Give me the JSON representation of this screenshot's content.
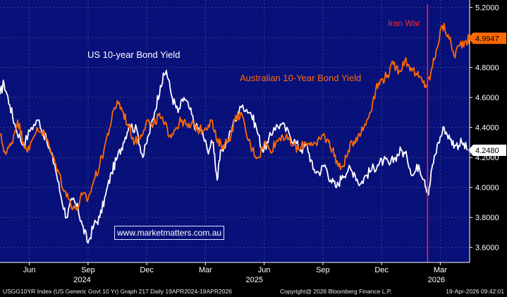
{
  "chart_data": {
    "type": "line",
    "title": "",
    "xlabel": "",
    "ylabel": "",
    "ylim": [
      3.5,
      5.25
    ],
    "x_unit": "months since 19-Apr-2024",
    "xlim": [
      0,
      24
    ],
    "y_ticks": [
      "5.2000",
      "5.0000",
      "4.8000",
      "4.6000",
      "4.4000",
      "4.2000",
      "4.0000",
      "3.8000",
      "3.6000"
    ],
    "x_month_labels": [
      {
        "label": "Jun",
        "x": 1.5
      },
      {
        "label": "Sep",
        "x": 4.5
      },
      {
        "label": "Dec",
        "x": 7.5
      },
      {
        "label": "Mar",
        "x": 10.5
      },
      {
        "label": "Jun",
        "x": 13.5
      },
      {
        "label": "Sep",
        "x": 16.5
      },
      {
        "label": "Dec",
        "x": 19.5
      },
      {
        "label": "Mar",
        "x": 22.5
      }
    ],
    "x_year_labels": [
      {
        "label": "2024",
        "x": 4.2
      },
      {
        "label": "2025",
        "x": 13.0
      },
      {
        "label": "2026",
        "x": 22.3
      }
    ],
    "series": [
      {
        "name": "US 10-year Bond Yield",
        "color": "#ffffff",
        "last_value": "4.2480",
        "points": [
          [
            0.0,
            4.62
          ],
          [
            0.2,
            4.7
          ],
          [
            0.5,
            4.55
          ],
          [
            0.8,
            4.4
          ],
          [
            1.2,
            4.28
          ],
          [
            1.6,
            4.4
          ],
          [
            2.0,
            4.45
          ],
          [
            2.4,
            4.3
          ],
          [
            2.8,
            4.15
          ],
          [
            3.1,
            3.95
          ],
          [
            3.4,
            3.8
          ],
          [
            3.7,
            3.92
          ],
          [
            4.0,
            3.85
          ],
          [
            4.2,
            3.75
          ],
          [
            4.5,
            3.63
          ],
          [
            4.8,
            3.75
          ],
          [
            5.1,
            3.8
          ],
          [
            5.4,
            3.95
          ],
          [
            5.7,
            4.1
          ],
          [
            6.0,
            4.2
          ],
          [
            6.3,
            4.3
          ],
          [
            6.6,
            4.42
          ],
          [
            7.0,
            4.38
          ],
          [
            7.3,
            4.2
          ],
          [
            7.6,
            4.35
          ],
          [
            7.9,
            4.5
          ],
          [
            8.2,
            4.68
          ],
          [
            8.5,
            4.78
          ],
          [
            8.8,
            4.6
          ],
          [
            9.1,
            4.5
          ],
          [
            9.4,
            4.6
          ],
          [
            9.7,
            4.52
          ],
          [
            10.0,
            4.4
          ],
          [
            10.3,
            4.38
          ],
          [
            10.6,
            4.25
          ],
          [
            10.9,
            4.3
          ],
          [
            11.1,
            4.05
          ],
          [
            11.3,
            4.25
          ],
          [
            11.6,
            4.3
          ],
          [
            12.0,
            4.45
          ],
          [
            12.4,
            4.55
          ],
          [
            12.8,
            4.5
          ],
          [
            13.1,
            4.4
          ],
          [
            13.4,
            4.25
          ],
          [
            13.7,
            4.3
          ],
          [
            14.0,
            4.4
          ],
          [
            14.4,
            4.42
          ],
          [
            14.8,
            4.35
          ],
          [
            15.1,
            4.3
          ],
          [
            15.4,
            4.25
          ],
          [
            15.7,
            4.28
          ],
          [
            16.0,
            4.12
          ],
          [
            16.3,
            4.1
          ],
          [
            16.6,
            4.15
          ],
          [
            16.9,
            4.05
          ],
          [
            17.2,
            4.0
          ],
          [
            17.5,
            4.08
          ],
          [
            17.8,
            4.12
          ],
          [
            18.1,
            4.1
          ],
          [
            18.4,
            4.02
          ],
          [
            18.7,
            4.08
          ],
          [
            19.0,
            4.12
          ],
          [
            19.3,
            4.15
          ],
          [
            19.6,
            4.18
          ],
          [
            19.9,
            4.15
          ],
          [
            20.2,
            4.2
          ],
          [
            20.5,
            4.25
          ],
          [
            20.8,
            4.2
          ],
          [
            21.1,
            4.08
          ],
          [
            21.4,
            4.15
          ],
          [
            21.7,
            4.05
          ],
          [
            21.9,
            3.95
          ],
          [
            22.1,
            4.15
          ],
          [
            22.4,
            4.3
          ],
          [
            22.7,
            4.4
          ],
          [
            23.0,
            4.32
          ],
          [
            23.3,
            4.28
          ],
          [
            23.6,
            4.3
          ],
          [
            23.9,
            4.25
          ]
        ]
      },
      {
        "name": "Australian 10-Year Bond Yield",
        "color": "#ff6a00",
        "last_value": "4.9947",
        "points": [
          [
            0.0,
            4.35
          ],
          [
            0.3,
            4.22
          ],
          [
            0.6,
            4.3
          ],
          [
            0.9,
            4.45
          ],
          [
            1.2,
            4.3
          ],
          [
            1.5,
            4.25
          ],
          [
            1.9,
            4.4
          ],
          [
            2.3,
            4.35
          ],
          [
            2.7,
            4.2
          ],
          [
            3.0,
            4.1
          ],
          [
            3.3,
            3.98
          ],
          [
            3.6,
            3.9
          ],
          [
            3.9,
            3.85
          ],
          [
            4.2,
            3.95
          ],
          [
            4.5,
            3.92
          ],
          [
            4.8,
            4.05
          ],
          [
            5.1,
            4.15
          ],
          [
            5.4,
            4.3
          ],
          [
            5.7,
            4.45
          ],
          [
            6.0,
            4.58
          ],
          [
            6.3,
            4.5
          ],
          [
            6.6,
            4.4
          ],
          [
            6.9,
            4.3
          ],
          [
            7.2,
            4.35
          ],
          [
            7.5,
            4.45
          ],
          [
            7.8,
            4.4
          ],
          [
            8.1,
            4.48
          ],
          [
            8.4,
            4.42
          ],
          [
            8.7,
            4.35
          ],
          [
            9.0,
            4.4
          ],
          [
            9.3,
            4.45
          ],
          [
            9.6,
            4.4
          ],
          [
            9.9,
            4.42
          ],
          [
            10.2,
            4.38
          ],
          [
            10.5,
            4.4
          ],
          [
            10.8,
            4.45
          ],
          [
            11.1,
            4.3
          ],
          [
            11.4,
            4.28
          ],
          [
            11.7,
            4.32
          ],
          [
            12.0,
            4.45
          ],
          [
            12.3,
            4.5
          ],
          [
            12.6,
            4.35
          ],
          [
            12.9,
            4.25
          ],
          [
            13.2,
            4.2
          ],
          [
            13.5,
            4.3
          ],
          [
            13.8,
            4.25
          ],
          [
            14.1,
            4.3
          ],
          [
            14.4,
            4.35
          ],
          [
            14.7,
            4.32
          ],
          [
            15.0,
            4.28
          ],
          [
            15.3,
            4.25
          ],
          [
            15.6,
            4.3
          ],
          [
            15.9,
            4.3
          ],
          [
            16.2,
            4.28
          ],
          [
            16.5,
            4.35
          ],
          [
            16.8,
            4.3
          ],
          [
            17.0,
            4.25
          ],
          [
            17.2,
            4.18
          ],
          [
            17.4,
            4.12
          ],
          [
            17.7,
            4.2
          ],
          [
            18.0,
            4.3
          ],
          [
            18.3,
            4.35
          ],
          [
            18.6,
            4.4
          ],
          [
            18.9,
            4.5
          ],
          [
            19.2,
            4.65
          ],
          [
            19.5,
            4.72
          ],
          [
            19.8,
            4.75
          ],
          [
            20.1,
            4.82
          ],
          [
            20.4,
            4.78
          ],
          [
            20.7,
            4.85
          ],
          [
            21.0,
            4.8
          ],
          [
            21.3,
            4.75
          ],
          [
            21.6,
            4.7
          ],
          [
            21.8,
            4.68
          ],
          [
            22.0,
            4.75
          ],
          [
            22.3,
            4.92
          ],
          [
            22.6,
            5.08
          ],
          [
            22.9,
            5.02
          ],
          [
            23.2,
            4.88
          ],
          [
            23.5,
            4.95
          ],
          [
            23.8,
            4.98
          ],
          [
            24.0,
            4.99
          ]
        ]
      }
    ],
    "annotations": [
      {
        "type": "vertical-line",
        "label": "Iran War",
        "x": 21.85,
        "color": "#ff2a2a"
      },
      {
        "type": "text",
        "label": "US 10-year Bond Yield",
        "series": "US 10-year Bond Yield"
      },
      {
        "type": "text",
        "label": "Australian 10-Year Bond Yield",
        "series": "Australian 10-Year Bond Yield"
      }
    ]
  },
  "watermark": "www.marketmatters.com.au",
  "footer": {
    "left": "USGG10YR Index (US Generic Govt 10 Yr) Graph 217 Daily 19APR2024-19APR2026",
    "center": "Copyright@ 2026 Bloomberg Finance L.P.",
    "right": "19-Apr-2026 09:42:01"
  },
  "colors": {
    "background": "#08107a",
    "grid": "#3a4285",
    "axis_text": "#ffffff"
  }
}
